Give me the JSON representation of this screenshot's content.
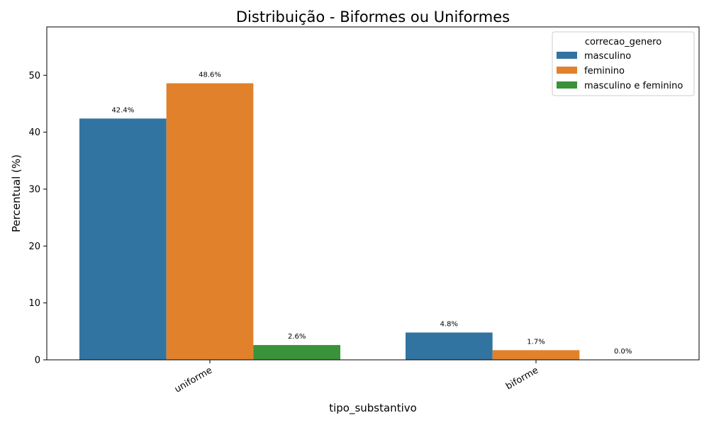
{
  "chart_data": {
    "type": "bar",
    "title": "Distribuição - Biformes ou Uniformes",
    "xlabel": "tipo_substantivo",
    "ylabel": "Percentual (%)",
    "categories": [
      "uniforme",
      "biforme"
    ],
    "ylim": [
      0,
      58.5
    ],
    "yticks": [
      0,
      10,
      20,
      30,
      40,
      50
    ],
    "grid": false,
    "legend": {
      "title": "correcao_genero",
      "placement": "top-right"
    },
    "series": [
      {
        "name": "masculino",
        "color": "#3274a1",
        "values": [
          42.4,
          4.8
        ],
        "labels": [
          "42.4%",
          "4.8%"
        ]
      },
      {
        "name": "feminino",
        "color": "#e1812c",
        "values": [
          48.6,
          1.7
        ],
        "labels": [
          "48.6%",
          "1.7%"
        ]
      },
      {
        "name": "masculino e feminino",
        "color": "#3a923a",
        "values": [
          2.6,
          0.0
        ],
        "labels": [
          "2.6%",
          "0.0%"
        ]
      }
    ]
  }
}
